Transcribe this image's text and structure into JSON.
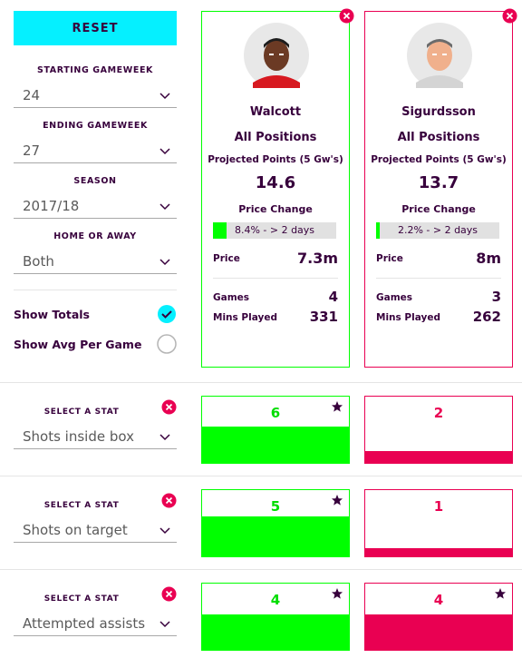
{
  "controls": {
    "reset_label": "RESET",
    "starting_gameweek": {
      "label": "STARTING GAMEWEEK",
      "value": "24"
    },
    "ending_gameweek": {
      "label": "ENDING GAMEWEEK",
      "value": "27"
    },
    "season": {
      "label": "SEASON",
      "value": "2017/18"
    },
    "home_or_away": {
      "label": "HOME OR AWAY",
      "value": "Both"
    },
    "show_totals": {
      "label": "Show Totals",
      "checked": true
    },
    "show_avg": {
      "label": "Show Avg Per Game",
      "checked": false
    }
  },
  "players": [
    {
      "name": "Walcott",
      "position": "All Positions",
      "projected_label": "Projected Points (5 Gw's)",
      "projected_value": "14.6",
      "price_change_label": "Price Change",
      "price_change_text": "8.4% - > 2 days",
      "price_change_fraction": 0.084,
      "price_label": "Price",
      "price_value": "7.3m",
      "games_label": "Games",
      "games_value": "4",
      "mins_label": "Mins Played",
      "mins_value": "331",
      "color": "#00ff00"
    },
    {
      "name": "Sigurdsson",
      "position": "All Positions",
      "projected_label": "Projected Points (5 Gw's)",
      "projected_value": "13.7",
      "price_change_label": "Price Change",
      "price_change_text": "2.2% - > 2 days",
      "price_change_fraction": 0.022,
      "price_label": "Price",
      "price_value": "8m",
      "games_label": "Games",
      "games_value": "3",
      "mins_label": "Mins Played",
      "mins_value": "262",
      "color": "#e90052"
    }
  ],
  "stats": [
    {
      "select_label": "SELECT A STAT",
      "stat": "Shots inside box",
      "values": [
        "6",
        "2"
      ],
      "fractions": [
        0.55,
        0.18
      ],
      "star": [
        true,
        false
      ]
    },
    {
      "select_label": "SELECT A STAT",
      "stat": "Shots on target",
      "values": [
        "5",
        "1"
      ],
      "fractions": [
        0.6,
        0.12
      ],
      "star": [
        true,
        false
      ]
    },
    {
      "select_label": "SELECT A STAT",
      "stat": "Attempted assists",
      "values": [
        "4",
        "4"
      ],
      "fractions": [
        0.53,
        0.53
      ],
      "star": [
        true,
        true
      ]
    }
  ],
  "colors": {
    "accent": "#05f0ff",
    "player1": "#00ff00",
    "player2": "#e90052",
    "remove": "#e90052",
    "text": "#37003c"
  },
  "icons": {
    "remove": "close-circle-icon",
    "star": "star-icon",
    "chevron": "chevron-down-icon",
    "check": "check-circle-icon"
  }
}
